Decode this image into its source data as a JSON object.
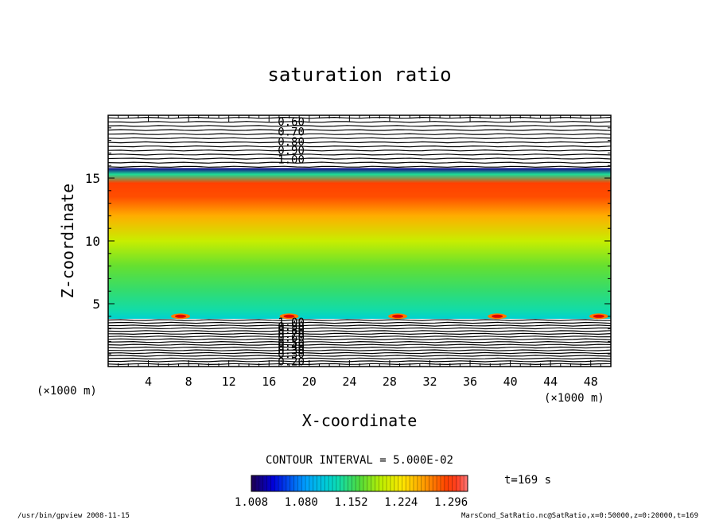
{
  "chart_data": {
    "type": "heatmap",
    "title": "saturation ratio",
    "xlabel": "X-coordinate",
    "ylabel": "Z-coordinate",
    "x_unit": "(×1000 m)",
    "y_unit": "(×1000 m)",
    "xlim": [
      0,
      50
    ],
    "ylim": [
      0,
      20
    ],
    "x_ticks": [
      4,
      8,
      12,
      16,
      20,
      24,
      28,
      32,
      36,
      40,
      44,
      48
    ],
    "y_ticks": [
      5,
      10,
      15
    ],
    "contour_interval_text": "CONTOUR INTERVAL = 5.000E-02",
    "time_text": "t=169 s",
    "colorbar": {
      "min": 1.008,
      "max": 1.32,
      "labels": [
        "1.008",
        "1.080",
        "1.152",
        "1.224",
        "1.296"
      ]
    },
    "field_profile": {
      "z": [
        3.8,
        4.5,
        6,
        8,
        10,
        12,
        13.5,
        14.6,
        15.3,
        15.8
      ],
      "value": [
        1.12,
        1.135,
        1.15,
        1.17,
        1.2,
        1.25,
        1.285,
        1.29,
        1.14,
        1.02
      ]
    },
    "upper_contours": {
      "z_start": 15.9,
      "z_end": 19.8,
      "count": 13,
      "labels": [
        "0.60",
        "0.70",
        "0.80",
        "0.90",
        "1.00"
      ],
      "label_z": [
        19.5,
        18.7,
        17.9,
        17.2,
        16.5
      ]
    },
    "lower_contours": {
      "z_start": 0.2,
      "z_end": 3.7,
      "count": 17,
      "labels": [
        "0.20",
        "0.30",
        "0.30",
        "0.40",
        "0.50",
        "0.60",
        "0.70",
        "0.80",
        "0.90",
        "1.00"
      ],
      "label_z": [
        0.4,
        1.0,
        1.3,
        1.6,
        1.9,
        2.3,
        2.6,
        2.9,
        3.2,
        3.55
      ]
    },
    "contour_label_x": 18.2,
    "hot_spots": [
      {
        "x": 7.2,
        "z": 4.0
      },
      {
        "x": 18.0,
        "z": 4.0
      },
      {
        "x": 28.8,
        "z": 4.0
      },
      {
        "x": 38.7,
        "z": 4.0
      },
      {
        "x": 48.8,
        "z": 4.0
      }
    ]
  },
  "footer": {
    "left": "/usr/bin/gpview  2008-11-15",
    "right": "MarsCond_SatRatio.nc@SatRatio,x=0:50000,z=0:20000,t=169"
  }
}
